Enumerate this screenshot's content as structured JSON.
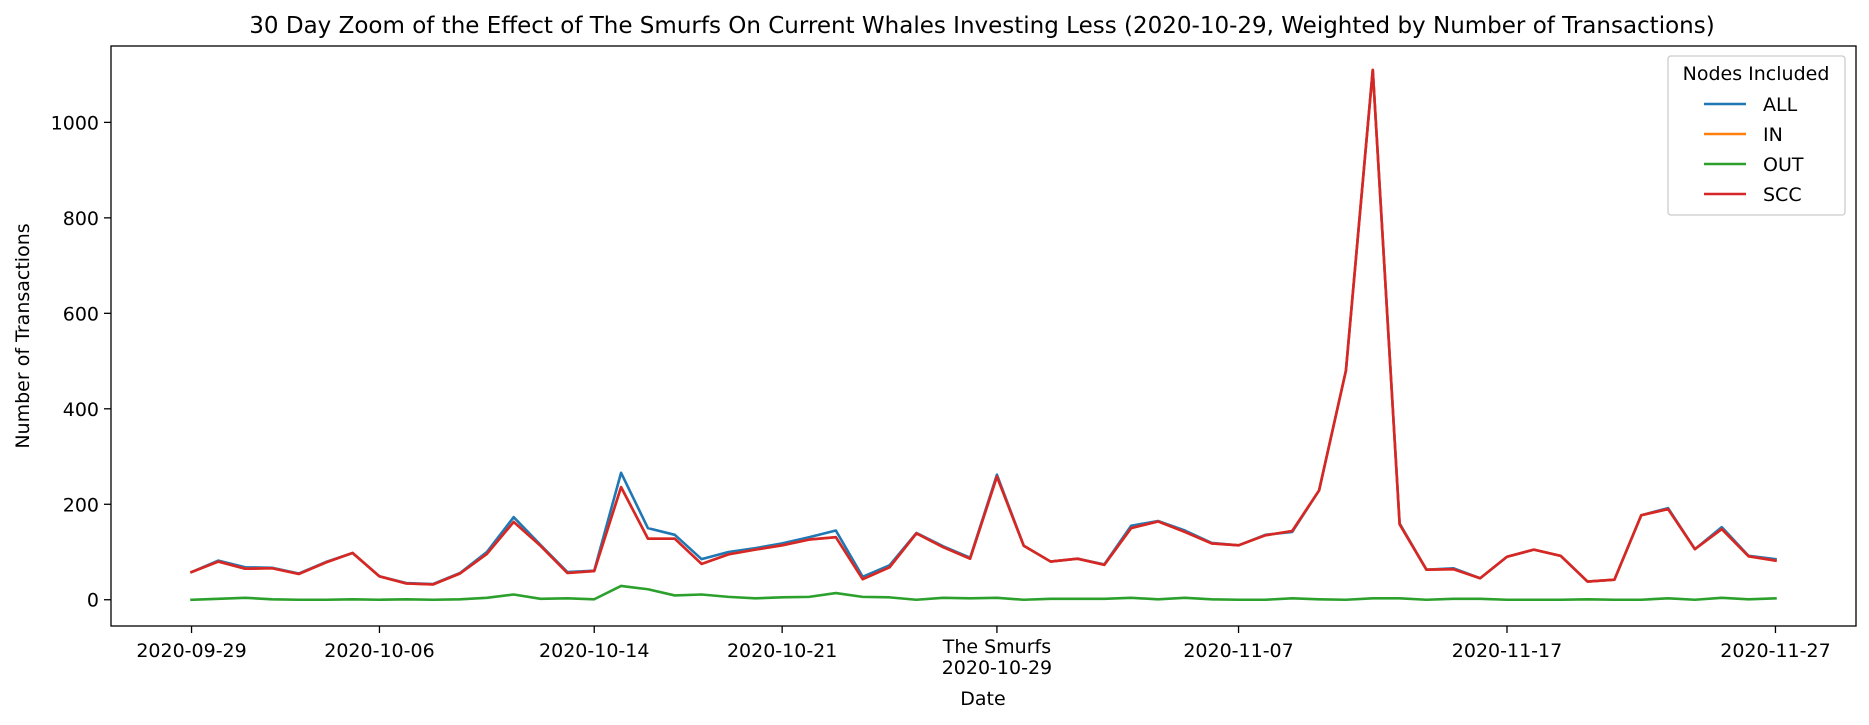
{
  "chart_data": {
    "type": "line",
    "title": "30 Day Zoom of the Effect of The Smurfs On Current Whales Investing Less (2020-10-29, Weighted by Number of Transactions)",
    "xlabel": "Date",
    "ylabel": "Number of Transactions",
    "xlim": [
      "2020-09-26",
      "2020-11-30"
    ],
    "ylim": [
      -55,
      1160
    ],
    "yticks": [
      0,
      200,
      400,
      600,
      800,
      1000
    ],
    "xticks": [
      {
        "date": "2020-09-29",
        "label": "2020-09-29"
      },
      {
        "date": "2020-10-06",
        "label": "2020-10-06"
      },
      {
        "date": "2020-10-14",
        "label": "2020-10-14"
      },
      {
        "date": "2020-10-21",
        "label": "2020-10-21"
      },
      {
        "date": "2020-10-29",
        "label": "2020-10-29"
      },
      {
        "date": "2020-11-07",
        "label": "2020-11-07"
      },
      {
        "date": "2020-11-17",
        "label": "2020-11-17"
      },
      {
        "date": "2020-11-27",
        "label": "2020-11-27"
      }
    ],
    "event": {
      "date": "2020-10-29",
      "label": "The Smurfs"
    },
    "legend": {
      "title": "Nodes Included",
      "location": "upper right"
    },
    "grid": false,
    "x": [
      "2020-09-29",
      "2020-09-30",
      "2020-10-01",
      "2020-10-02",
      "2020-10-03",
      "2020-10-04",
      "2020-10-05",
      "2020-10-06",
      "2020-10-07",
      "2020-10-08",
      "2020-10-09",
      "2020-10-10",
      "2020-10-11",
      "2020-10-12",
      "2020-10-13",
      "2020-10-14",
      "2020-10-15",
      "2020-10-16",
      "2020-10-17",
      "2020-10-18",
      "2020-10-19",
      "2020-10-20",
      "2020-10-21",
      "2020-10-22",
      "2020-10-23",
      "2020-10-24",
      "2020-10-25",
      "2020-10-26",
      "2020-10-27",
      "2020-10-28",
      "2020-10-29",
      "2020-10-30",
      "2020-10-31",
      "2020-11-01",
      "2020-11-02",
      "2020-11-03",
      "2020-11-04",
      "2020-11-05",
      "2020-11-06",
      "2020-11-07",
      "2020-11-08",
      "2020-11-09",
      "2020-11-10",
      "2020-11-11",
      "2020-11-12",
      "2020-11-13",
      "2020-11-14",
      "2020-11-15",
      "2020-11-16",
      "2020-11-17",
      "2020-11-18",
      "2020-11-19",
      "2020-11-20",
      "2020-11-21",
      "2020-11-22",
      "2020-11-23",
      "2020-11-24",
      "2020-11-25",
      "2020-11-26",
      "2020-11-27"
    ],
    "series": [
      {
        "name": "ALL",
        "color": "#1f77b4",
        "values": [
          58,
          82,
          68,
          67,
          55,
          79,
          98,
          49,
          35,
          33,
          56,
          100,
          173,
          115,
          58,
          61,
          266,
          150,
          136,
          85,
          100,
          108,
          118,
          131,
          145,
          48,
          72,
          140,
          112,
          88,
          262,
          113,
          80,
          86,
          74,
          155,
          165,
          145,
          119,
          114,
          136,
          142,
          229,
          480,
          1110,
          160,
          63,
          66,
          45,
          90,
          105,
          92,
          38,
          42,
          177,
          192,
          106,
          152,
          92,
          85
        ]
      },
      {
        "name": "IN",
        "color": "#ff7f0e",
        "values": [
          58,
          80,
          65,
          66,
          54,
          78,
          98,
          49,
          34,
          32,
          55,
          96,
          163,
          113,
          56,
          60,
          236,
          128,
          128,
          75,
          95,
          105,
          114,
          126,
          131,
          43,
          68,
          139,
          110,
          86,
          258,
          113,
          80,
          86,
          73,
          150,
          164,
          142,
          118,
          114,
          135,
          144,
          229,
          480,
          1110,
          158,
          63,
          64,
          45,
          90,
          105,
          92,
          38,
          42,
          177,
          190,
          106,
          148,
          91,
          82
        ]
      },
      {
        "name": "OUT",
        "color": "#2ca02c",
        "values": [
          0,
          2,
          4,
          1,
          0,
          0,
          1,
          0,
          1,
          0,
          1,
          4,
          11,
          2,
          3,
          1,
          29,
          22,
          9,
          11,
          6,
          3,
          5,
          6,
          14,
          6,
          5,
          0,
          4,
          3,
          4,
          0,
          2,
          2,
          2,
          4,
          1,
          4,
          1,
          0,
          0,
          3,
          1,
          0,
          3,
          3,
          0,
          2,
          2,
          0,
          0,
          0,
          1,
          0,
          0,
          3,
          0,
          4,
          1,
          3
        ]
      },
      {
        "name": "SCC",
        "color": "#d62728",
        "values": [
          58,
          80,
          65,
          66,
          54,
          78,
          98,
          49,
          34,
          32,
          55,
          96,
          163,
          113,
          56,
          60,
          236,
          128,
          128,
          75,
          95,
          105,
          114,
          126,
          131,
          43,
          68,
          139,
          110,
          86,
          258,
          113,
          80,
          86,
          73,
          150,
          164,
          142,
          118,
          114,
          135,
          144,
          229,
          480,
          1110,
          158,
          63,
          64,
          45,
          90,
          105,
          92,
          38,
          42,
          177,
          190,
          106,
          148,
          91,
          82
        ]
      }
    ]
  }
}
